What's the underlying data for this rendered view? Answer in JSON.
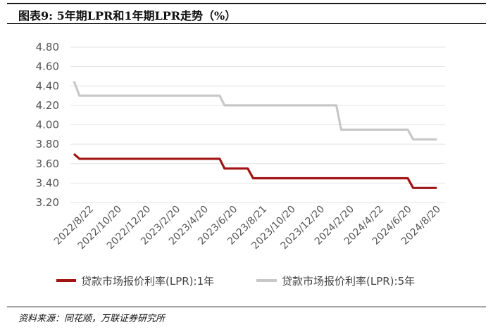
{
  "title": "图表9:  5年期LPR和1年期LPR走势（%）",
  "source": "资料来源：同花顺，万联证券研究所",
  "chart_data": {
    "type": "line",
    "title": "",
    "xlabel": "",
    "ylabel": "",
    "ylim": [
      3.2,
      4.8
    ],
    "yticks": [
      "4.80",
      "4.60",
      "4.40",
      "4.20",
      "4.00",
      "3.80",
      "3.60",
      "3.40",
      "3.20"
    ],
    "grid": "horizontal",
    "legend_position": "bottom",
    "x_tick_labels": [
      "2022/8/22",
      "2022/10/20",
      "2022/12/20",
      "2023/2/20",
      "2023/4/20",
      "2023/6/20",
      "2023/8/21",
      "2023/10/20",
      "2023/12/20",
      "2024/2/20",
      "2024/4/22",
      "2024/6/20",
      "2024/8/20"
    ],
    "x": [
      "2022/7/20",
      "2022/8/22",
      "2022/9/20",
      "2022/10/20",
      "2022/11/21",
      "2022/12/20",
      "2023/1/20",
      "2023/2/20",
      "2023/3/20",
      "2023/4/20",
      "2023/5/22",
      "2023/6/20",
      "2023/7/20",
      "2023/8/21",
      "2023/9/20",
      "2023/10/20",
      "2023/11/20",
      "2023/12/20",
      "2024/1/22",
      "2024/2/20",
      "2024/3/20",
      "2024/4/22",
      "2024/5/20",
      "2024/6/20",
      "2024/7/22",
      "2024/8/20"
    ],
    "series": [
      {
        "name": "贷款市场报价利率(LPR):1年",
        "color": "#a11414",
        "values": [
          3.7,
          3.65,
          3.65,
          3.65,
          3.65,
          3.65,
          3.65,
          3.65,
          3.65,
          3.65,
          3.65,
          3.55,
          3.55,
          3.45,
          3.45,
          3.45,
          3.45,
          3.45,
          3.45,
          3.45,
          3.45,
          3.45,
          3.45,
          3.45,
          3.35,
          3.35
        ]
      },
      {
        "name": "贷款市场报价利率(LPR):5年",
        "color": "#c8c8c8",
        "values": [
          4.45,
          4.3,
          4.3,
          4.3,
          4.3,
          4.3,
          4.3,
          4.3,
          4.3,
          4.3,
          4.3,
          4.2,
          4.2,
          4.2,
          4.2,
          4.2,
          4.2,
          4.2,
          4.2,
          3.95,
          3.95,
          3.95,
          3.95,
          3.95,
          3.85,
          3.85
        ]
      }
    ]
  }
}
